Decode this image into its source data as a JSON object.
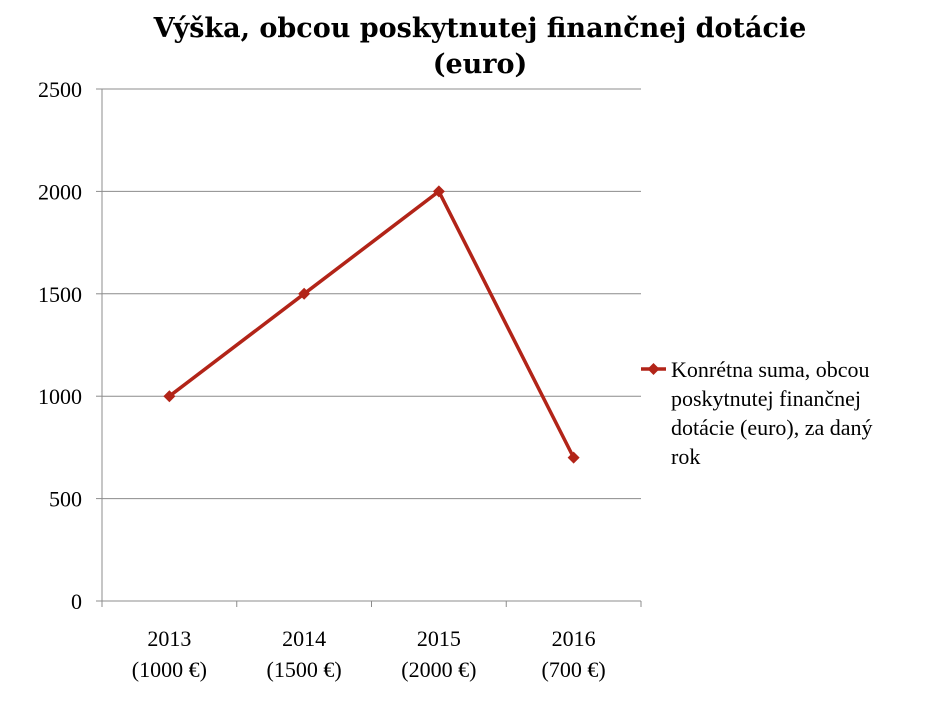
{
  "chart_data": {
    "type": "line",
    "title_lines": [
      "Výška, obcou poskytnutej finančnej dotácie",
      "(euro)"
    ],
    "xlabel": "",
    "ylabel": "",
    "ylim": [
      0,
      2500
    ],
    "yticks": [
      0,
      500,
      1000,
      1500,
      2000,
      2500
    ],
    "grid": true,
    "categories": [
      [
        "2013",
        "(1000 €)"
      ],
      [
        "2014",
        "(1500 €)"
      ],
      [
        "2015",
        "(2000 €)"
      ],
      [
        "2016",
        "(700 €)"
      ]
    ],
    "series": [
      {
        "name": "Konrétna suma, obcou poskytnutej finančnej dotácie (euro), za daný rok",
        "legend_lines": [
          "Konrétna suma, obcou",
          "poskytnutej finančnej",
          "dotácie (euro), za daný",
          "rok"
        ],
        "values": [
          1000,
          1500,
          2000,
          700
        ],
        "color": "#b22418",
        "marker": "diamond"
      }
    ],
    "legend_position": "right"
  }
}
